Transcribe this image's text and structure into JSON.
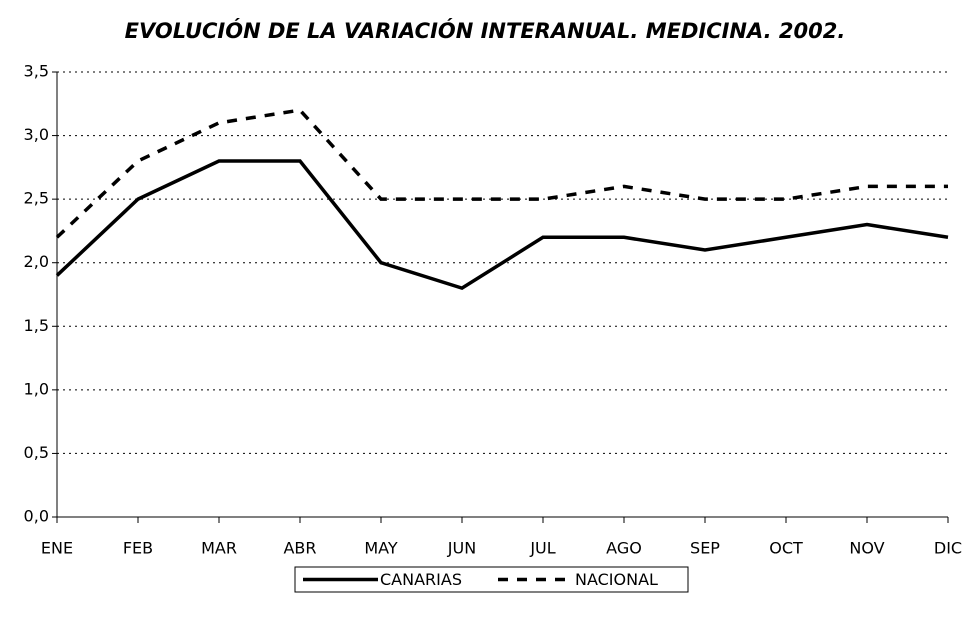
{
  "chart_data": {
    "type": "line",
    "title": "EVOLUCIÓN DE LA VARIACIÓN INTERANUAL. MEDICINA. 2002.",
    "categories": [
      "ENE",
      "FEB",
      "MAR",
      "ABR",
      "MAY",
      "JUN",
      "JUL",
      "AGO",
      "SEP",
      "OCT",
      "NOV",
      "DIC"
    ],
    "series": [
      {
        "name": "CANARIAS",
        "color": "#000000",
        "dash": "solid",
        "values": [
          1.9,
          2.5,
          2.8,
          2.8,
          2.0,
          1.8,
          2.2,
          2.2,
          2.1,
          2.2,
          2.3,
          2.2
        ]
      },
      {
        "name": "NACIONAL",
        "color": "#000000",
        "dash": "dashed",
        "values": [
          2.2,
          2.8,
          3.1,
          3.2,
          2.5,
          2.5,
          2.5,
          2.6,
          2.5,
          2.5,
          2.6,
          2.6
        ]
      }
    ],
    "ylim": [
      0,
      3.5
    ],
    "yticks": [
      {
        "value": 0,
        "label": "0,0"
      },
      {
        "value": 0.5,
        "label": "0,5"
      },
      {
        "value": 1,
        "label": "1,0"
      },
      {
        "value": 1.5,
        "label": "1,5"
      },
      {
        "value": 2,
        "label": "2,0"
      },
      {
        "value": 2.5,
        "label": "2,5"
      },
      {
        "value": 3,
        "label": "3,0"
      },
      {
        "value": 3.5,
        "label": "3,5"
      }
    ],
    "grid": true,
    "legend": "bottom"
  }
}
